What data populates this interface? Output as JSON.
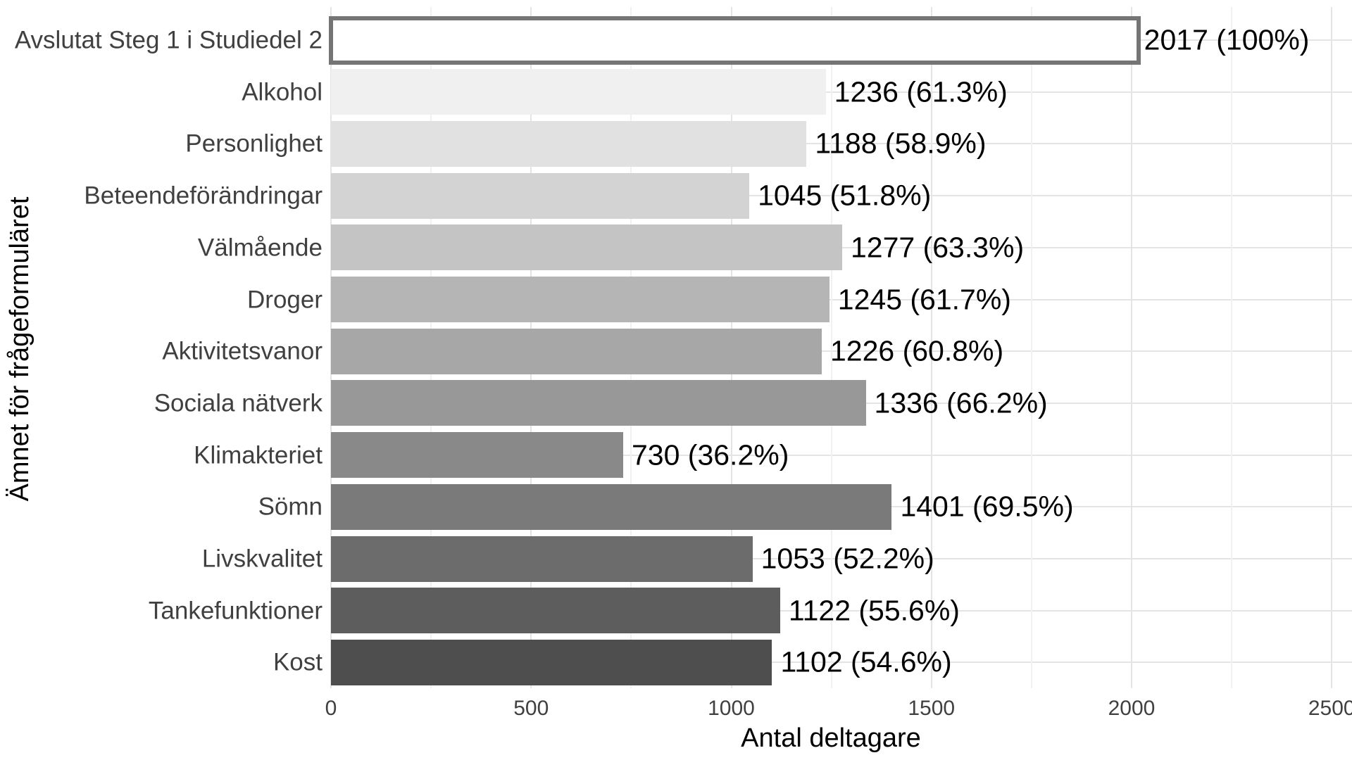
{
  "chart_data": {
    "type": "bar",
    "orientation": "horizontal",
    "title": "",
    "xlabel": "Antal deltagare",
    "ylabel": "Ämnet för frågeformuläret",
    "xlim": [
      0,
      2550
    ],
    "grid": true,
    "legend": "none",
    "x_major_ticks": [
      0,
      500,
      1000,
      1500,
      2000,
      2500
    ],
    "x_tick_labels": [
      "0",
      "500",
      "1000",
      "1500",
      "2000",
      "2500"
    ],
    "x_minor_gridlines": [
      250,
      750,
      1250,
      1750,
      2250
    ],
    "bars": [
      {
        "category": "Avslutat Steg 1 i Studiedel 2",
        "value": 2017,
        "label": "2017 (100%)",
        "fill": "#FFFFFF",
        "stroke": "#757575"
      },
      {
        "category": "Alkohol",
        "value": 1236,
        "label": "1236 (61.3%)",
        "fill": "#F0F0F0"
      },
      {
        "category": "Personlighet",
        "value": 1188,
        "label": "1188 (58.9%)",
        "fill": "#E1E1E1"
      },
      {
        "category": "Beteendeförändringar",
        "value": 1045,
        "label": "1045 (51.8%)",
        "fill": "#D3D3D3"
      },
      {
        "category": "Välmående",
        "value": 1277,
        "label": "1277 (63.3%)",
        "fill": "#C4C4C4"
      },
      {
        "category": "Droger",
        "value": 1245,
        "label": "1245 (61.7%)",
        "fill": "#B5B5B5"
      },
      {
        "category": "Aktivitetsvanor",
        "value": 1226,
        "label": "1226 (60.8%)",
        "fill": "#A7A7A7"
      },
      {
        "category": "Sociala nätverk",
        "value": 1336,
        "label": "1336 (66.2%)",
        "fill": "#989898"
      },
      {
        "category": "Klimakteriet",
        "value": 730,
        "label": "730 (36.2%)",
        "fill": "#898989"
      },
      {
        "category": "Sömn",
        "value": 1401,
        "label": "1401 (69.5%)",
        "fill": "#7A7A7A"
      },
      {
        "category": "Livskvalitet",
        "value": 1053,
        "label": "1053 (52.2%)",
        "fill": "#6C6C6C"
      },
      {
        "category": "Tankefunktioner",
        "value": 1122,
        "label": "1122 (55.6%)",
        "fill": "#5D5D5D"
      },
      {
        "category": "Kost",
        "value": 1102,
        "label": "1102 (54.6%)",
        "fill": "#4E4E4E"
      }
    ],
    "colors": {
      "background": "#FFFFFF",
      "grid_major": "#E4E4E4",
      "grid_minor": "#F1F1F1",
      "axis_text": "#404040",
      "data_label_text": "#000000",
      "axis_title_text": "#000000",
      "highlight_bar_stroke": "#757575"
    }
  }
}
